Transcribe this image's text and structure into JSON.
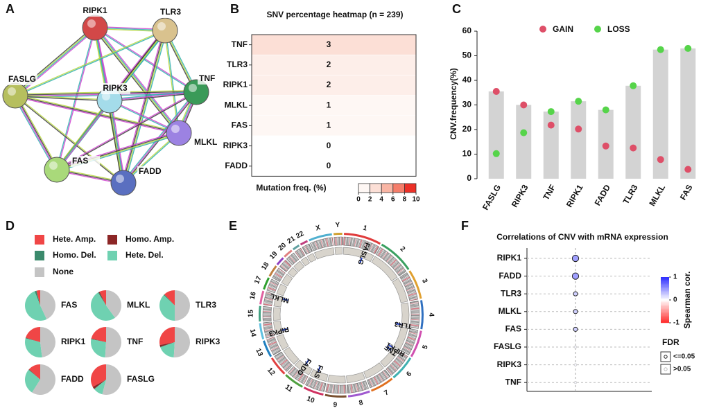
{
  "chart_data": [
    {
      "type": "network",
      "panel_label": "A",
      "nodes": [
        {
          "label": "RIPK1",
          "color": "#d24848"
        },
        {
          "label": "TLR3",
          "color": "#d9c28e"
        },
        {
          "label": "FASLG",
          "color": "#b6bf5e"
        },
        {
          "label": "TNF",
          "color": "#3a9a58"
        },
        {
          "label": "RIPK3",
          "color": "#a4dcea"
        },
        {
          "label": "MLKL",
          "color": "#9c82e2"
        },
        {
          "label": "FAS",
          "color": "#a9d97a"
        },
        {
          "label": "FADD",
          "color": "#5a6fc0"
        }
      ]
    },
    {
      "type": "heatmap",
      "panel_label": "B",
      "title": "SNV percentage heatmap (n = 239)",
      "categories": [
        "TNF",
        "TLR3",
        "RIPK1",
        "MLKL",
        "FAS",
        "RIPK3",
        "FADD"
      ],
      "values": [
        3,
        2,
        2,
        1,
        1,
        0,
        0
      ],
      "colorbar": {
        "label": "Mutation freq. (%)",
        "range": [
          0,
          10
        ],
        "ticks": [
          0,
          2,
          4,
          6,
          8,
          10
        ],
        "colors": [
          "#ffffff",
          "#fdeee9",
          "#fbcfc2",
          "#f79a86",
          "#f2604e",
          "#e60000"
        ]
      }
    },
    {
      "type": "bar",
      "panel_label": "C",
      "ylabel": "CNV.frequency(%)",
      "categories": [
        "FASLG",
        "RIPK3",
        "TNF",
        "RIPK1",
        "FADD",
        "TLR3",
        "MLKL",
        "FAS"
      ],
      "bars": {
        "color": "#d3d3d3",
        "values": [
          35.5,
          30,
          27.3,
          31.5,
          28,
          37.8,
          52.5,
          53
        ]
      },
      "series": [
        {
          "name": "GAIN",
          "color": "#de4f68",
          "values": [
            35.5,
            30,
            21.8,
            20.2,
            13.3,
            12.5,
            7.8,
            3.8
          ]
        },
        {
          "name": "LOSS",
          "color": "#56d44a",
          "values": [
            10.2,
            18.7,
            27.3,
            31.5,
            28,
            37.8,
            52.5,
            53
          ]
        }
      ],
      "ylim": [
        0,
        60
      ],
      "yticks": [
        0,
        10,
        20,
        30,
        40,
        50,
        60
      ]
    },
    {
      "type": "pie",
      "panel_label": "D",
      "legend": [
        {
          "name": "Hete. Amp.",
          "color": "#f04646"
        },
        {
          "name": "Homo. Amp.",
          "color": "#8c2626"
        },
        {
          "name": "Homo. Del.",
          "color": "#3b8a6c"
        },
        {
          "name": "Hete. Del.",
          "color": "#6fd1b1"
        },
        {
          "name": "None",
          "color": "#c4c4c4"
        }
      ],
      "pies": [
        {
          "name": "FAS",
          "values": [
            4,
            0,
            2,
            51,
            43
          ]
        },
        {
          "name": "MLKL",
          "values": [
            7,
            1,
            1,
            51,
            40
          ]
        },
        {
          "name": "TLR3",
          "values": [
            12,
            0,
            1,
            37,
            50
          ]
        },
        {
          "name": "RIPK1",
          "values": [
            20,
            0.5,
            0.5,
            31,
            48
          ]
        },
        {
          "name": "TNF",
          "values": [
            21,
            0.5,
            0.5,
            27,
            51
          ]
        },
        {
          "name": "RIPK3",
          "values": [
            28,
            2,
            0.5,
            18.5,
            51
          ]
        },
        {
          "name": "FADD",
          "values": [
            13,
            0.5,
            0.5,
            27,
            59
          ]
        },
        {
          "name": "FASLG",
          "values": [
            33,
            2.5,
            0.5,
            10,
            54
          ]
        }
      ]
    },
    {
      "type": "circos",
      "panel_label": "E",
      "chromosomes": [
        "1",
        "2",
        "3",
        "4",
        "5",
        "6",
        "7",
        "8",
        "9",
        "10",
        "11",
        "12",
        "13",
        "14",
        "15",
        "16",
        "17",
        "18",
        "19",
        "20",
        "21",
        "22",
        "X",
        "Y"
      ],
      "genes": [
        "FASLG",
        "TLR3",
        "RIPK1",
        "TNF",
        "FADD",
        "FAS",
        "RIPK3",
        "MLKL"
      ]
    },
    {
      "type": "dot",
      "panel_label": "F",
      "title": "Correlations of CNV with mRNA expression",
      "categories": [
        "RIPK1",
        "FADD",
        "TLR3",
        "MLKL",
        "FAS",
        "FASLG",
        "RIPK3",
        "TNF"
      ],
      "values": [
        0.45,
        0.45,
        0.22,
        0.22,
        0.22,
        0.04,
        0.04,
        0.04
      ],
      "fdr_significant": [
        true,
        true,
        true,
        true,
        true,
        false,
        false,
        false
      ],
      "colorbar": {
        "label": "Spearman cor.",
        "range": [
          -1,
          1
        ],
        "ticks": [
          1,
          0,
          -1
        ],
        "colors": [
          "#2b2bff",
          "#ffffff",
          "#ff2a2a"
        ]
      },
      "fdr_legend": {
        "title": "FDR",
        "labels": [
          "<=0.05",
          ">0.05"
        ]
      }
    }
  ]
}
